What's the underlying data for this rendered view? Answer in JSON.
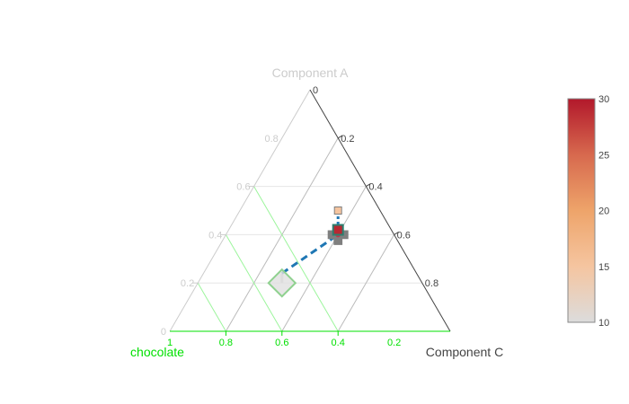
{
  "chart_data": {
    "type": "ternary-scatter",
    "axes": {
      "a": {
        "title": "Component A",
        "color": "#cccccc",
        "tick_color": "#cccccc",
        "ticks": [
          "0",
          "0.2",
          "0.4",
          "0.6",
          "0.8"
        ],
        "range": [
          0,
          0.8
        ]
      },
      "b": {
        "title": "chocolate",
        "color": "#00e000",
        "tick_color": "#00e000",
        "ticks": [
          "1",
          "0.8",
          "0.6",
          "0.4",
          "0.2"
        ],
        "range": [
          0.2,
          1
        ]
      },
      "c": {
        "title": "Component C",
        "color": "#444444",
        "tick_color": "#444444",
        "ticks": [
          "0",
          "0.2",
          "0.4",
          "0.6",
          "0.8"
        ],
        "range": [
          0,
          0.8
        ]
      }
    },
    "sum": 1,
    "series": [
      {
        "mode": "lines+markers",
        "line_color": "#1f77b4",
        "line_dash": "dash",
        "points": [
          {
            "a": 0.2,
            "b": 0.5,
            "c": 0.3,
            "marker": "diamond",
            "size": 30,
            "value": 10
          },
          {
            "a": 0.24,
            "b": 0.48,
            "c": 0.28,
            "marker": "diamond",
            "size": 30,
            "value": 12
          },
          {
            "a": 0.4,
            "b": 0.2,
            "c": 0.4,
            "marker": "cross",
            "size": 22,
            "value": 27
          },
          {
            "a": 0.42,
            "b": 0.19,
            "c": 0.39,
            "marker": "square",
            "size": 11,
            "value": 29
          },
          {
            "a": 0.5,
            "b": 0.15,
            "c": 0.35,
            "marker": "square",
            "size": 8,
            "value": 15
          }
        ]
      }
    ],
    "colorbar": {
      "ticks": [
        "10",
        "15",
        "20",
        "25",
        "30"
      ],
      "range": [
        10,
        30
      ],
      "colorscale": [
        "#dcdcdc",
        "#f5c5a0",
        "#eea46a",
        "#d7694e",
        "#b2182b"
      ]
    }
  }
}
